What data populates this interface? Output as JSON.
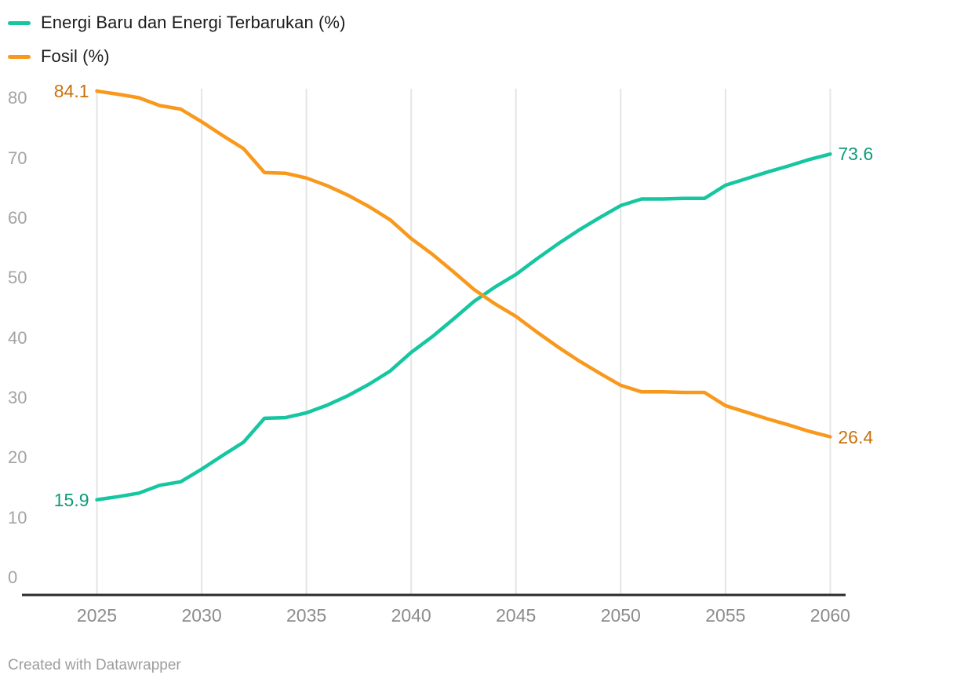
{
  "legend": {
    "items": [
      {
        "label": "Energi Baru dan Energi Terbarukan (%)",
        "color": "#16C6A0"
      },
      {
        "label": "Fosil (%)",
        "color": "#F8991D"
      }
    ]
  },
  "footer": {
    "text": "Created with Datawrapper"
  },
  "chart_data": {
    "type": "line",
    "title": "",
    "xlabel": "",
    "ylabel": "",
    "grid": "vertical-only",
    "legend_position": "top-left",
    "ylim": [
      0,
      85
    ],
    "y_ticks": [
      0,
      10,
      20,
      30,
      40,
      50,
      60,
      70,
      80
    ],
    "x_ticks": [
      2025,
      2030,
      2035,
      2040,
      2045,
      2050,
      2055,
      2060
    ],
    "years": [
      2025,
      2026,
      2027,
      2028,
      2029,
      2030,
      2031,
      2032,
      2033,
      2034,
      2035,
      2036,
      2037,
      2038,
      2039,
      2040,
      2041,
      2042,
      2043,
      2044,
      2045,
      2046,
      2047,
      2048,
      2049,
      2050,
      2051,
      2052,
      2053,
      2054,
      2055,
      2056,
      2057,
      2058,
      2059,
      2060
    ],
    "series": [
      {
        "name": "Energi Baru dan Energi Terbarukan (%)",
        "color": "#16C6A0",
        "label_color": "#0F9B7B",
        "start_label": "15.9",
        "end_label": "73.6",
        "values": [
          15.9,
          16.4,
          17.0,
          18.3,
          18.9,
          21.0,
          23.3,
          25.5,
          29.5,
          29.6,
          30.4,
          31.7,
          33.3,
          35.2,
          37.4,
          40.5,
          43.1,
          46.0,
          49.0,
          51.4,
          53.5,
          56.1,
          58.6,
          60.9,
          63.0,
          65.0,
          66.1,
          66.1,
          66.2,
          66.2,
          68.4,
          69.5,
          70.6,
          71.6,
          72.7,
          73.6
        ]
      },
      {
        "name": "Fosil (%)",
        "color": "#F8991D",
        "label_color": "#C9710B",
        "start_label": "84.1",
        "end_label": "26.4",
        "values": [
          84.1,
          83.6,
          83.0,
          81.7,
          81.1,
          79.0,
          76.7,
          74.5,
          70.5,
          70.4,
          69.6,
          68.3,
          66.7,
          64.8,
          62.6,
          59.5,
          56.9,
          54.0,
          51.0,
          48.6,
          46.5,
          43.9,
          41.4,
          39.1,
          37.0,
          35.0,
          33.9,
          33.9,
          33.8,
          33.8,
          31.6,
          30.5,
          29.4,
          28.4,
          27.3,
          26.4
        ]
      }
    ]
  }
}
